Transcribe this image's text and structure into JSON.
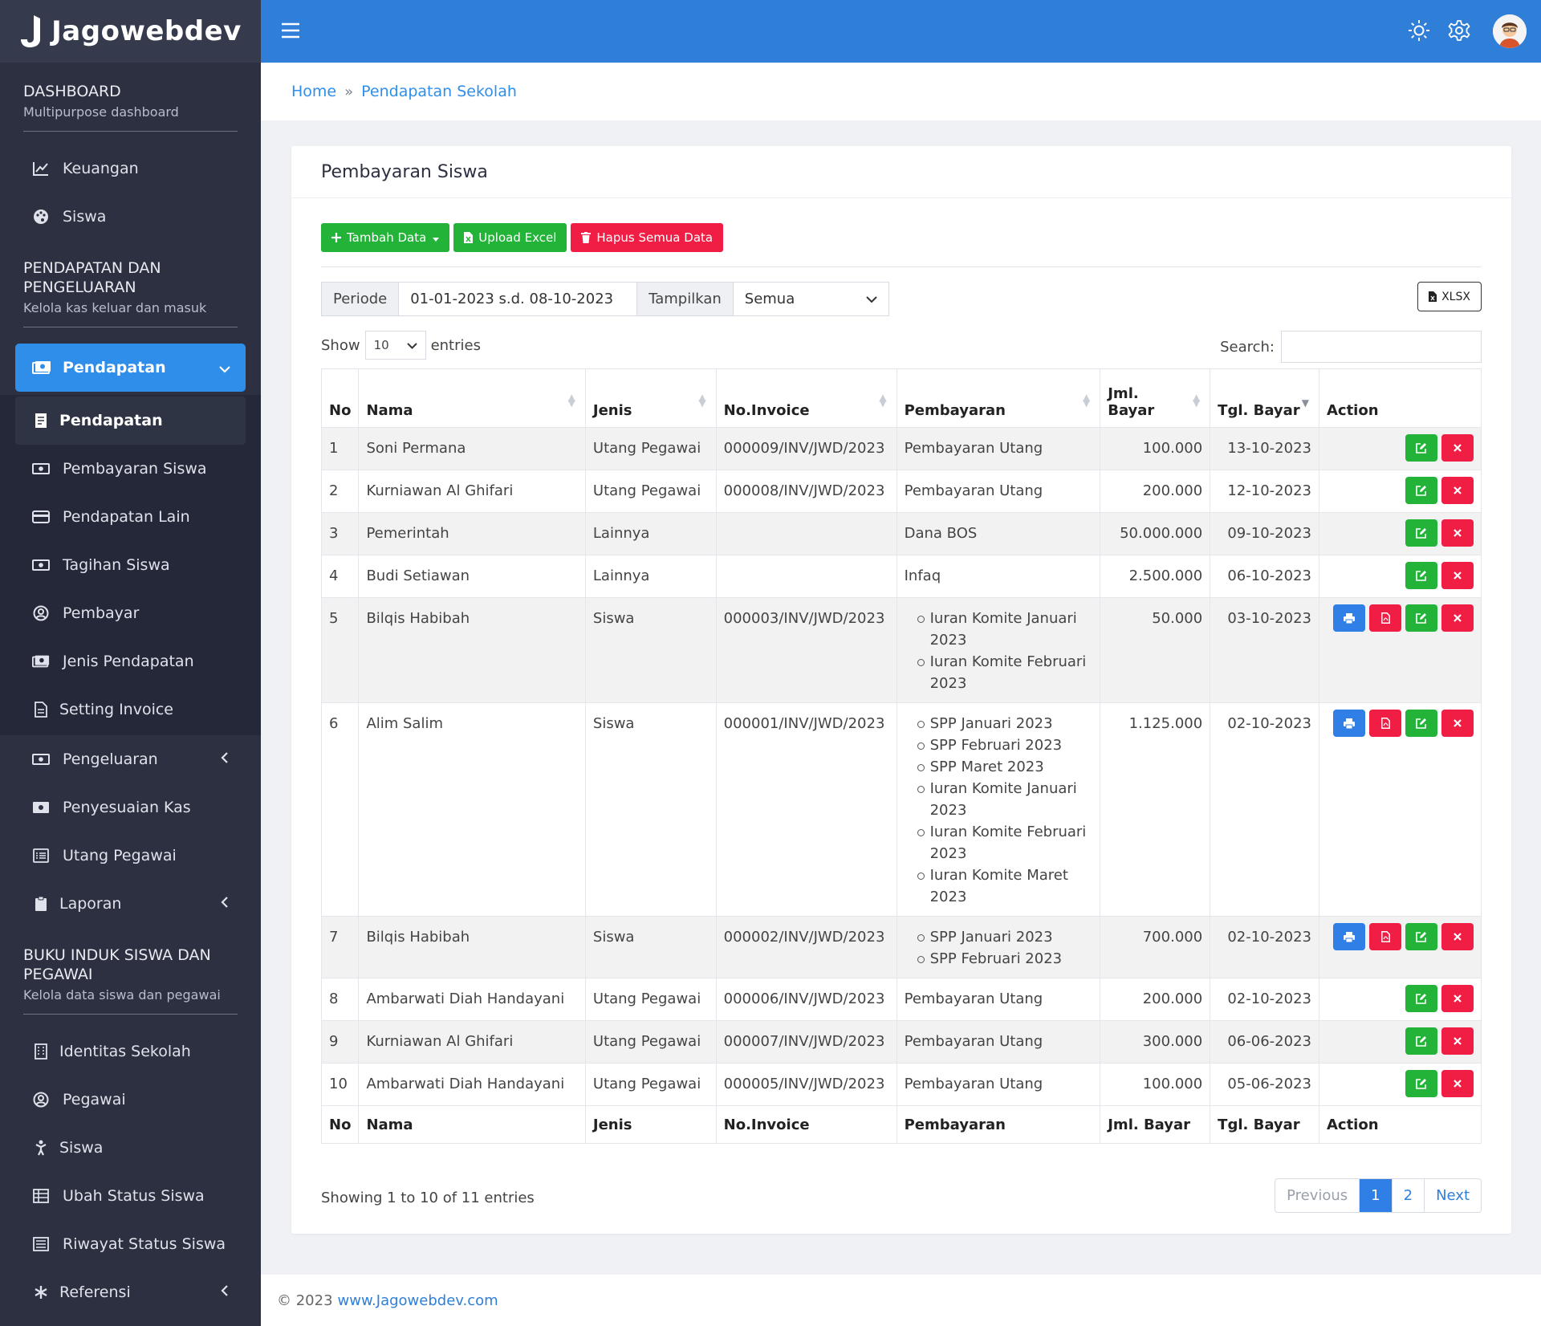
{
  "brand": {
    "name": "Jagowebdev"
  },
  "sidebar": {
    "sections": [
      {
        "title": "DASHBOARD",
        "subtitle": "Multipurpose dashboard"
      },
      {
        "title": "PENDAPATAN DAN PENGELUARAN",
        "subtitle": "Kelola kas keluar dan masuk"
      },
      {
        "title": "BUKU INDUK SISWA DAN PEGAWAI",
        "subtitle": "Kelola data siswa dan pegawai"
      }
    ],
    "dashboard_items": [
      {
        "label": "Keuangan",
        "icon": "chart-line-icon"
      },
      {
        "label": "Siswa",
        "icon": "palette-icon"
      }
    ],
    "pendapatan_group": {
      "label": "Pendapatan",
      "icon": "money-icon"
    },
    "pendapatan_items": [
      {
        "label": "Pendapatan",
        "icon": "receipt-icon",
        "current": true
      },
      {
        "label": "Pembayaran Siswa",
        "icon": "money-bill-icon"
      },
      {
        "label": "Pendapatan Lain",
        "icon": "credit-card-icon"
      },
      {
        "label": "Tagihan Siswa",
        "icon": "money-bill-icon"
      },
      {
        "label": "Pembayar",
        "icon": "user-circle-icon"
      },
      {
        "label": "Jenis Pendapatan",
        "icon": "money-icon"
      },
      {
        "label": "Setting Invoice",
        "icon": "file-icon"
      }
    ],
    "other_items": [
      {
        "label": "Pengeluaran",
        "icon": "money-bill-icon",
        "expandable": true
      },
      {
        "label": "Penyesuaian Kas",
        "icon": "money-icon"
      },
      {
        "label": "Utang Pegawai",
        "icon": "list-icon"
      },
      {
        "label": "Laporan",
        "icon": "clipboard-icon",
        "expandable": true
      }
    ],
    "buku_items": [
      {
        "label": "Identitas Sekolah",
        "icon": "building-icon"
      },
      {
        "label": "Pegawai",
        "icon": "user-circle-icon"
      },
      {
        "label": "Siswa",
        "icon": "child-icon"
      },
      {
        "label": "Ubah Status Siswa",
        "icon": "table-icon"
      },
      {
        "label": "Riwayat Status Siswa",
        "icon": "history-table-icon"
      },
      {
        "label": "Referensi",
        "icon": "asterisk-icon",
        "expandable": true
      }
    ]
  },
  "breadcrumb": {
    "home": "Home",
    "current": "Pendapatan Sekolah"
  },
  "card": {
    "title": "Pembayaran Siswa"
  },
  "toolbar": {
    "add_label": "Tambah Data",
    "upload_label": "Upload Excel",
    "delete_all_label": "Hapus Semua Data",
    "xlsx_label": "XLSX"
  },
  "filter": {
    "periode_label": "Periode",
    "periode_value": "01-01-2023 s.d. 08-10-2023",
    "tampilkan_label": "Tampilkan",
    "tampilkan_value": "Semua"
  },
  "length": {
    "show_label": "Show",
    "value": "10",
    "entries_label": "entries"
  },
  "search": {
    "label": "Search:"
  },
  "table": {
    "headers": {
      "no": "No",
      "nama": "Nama",
      "jenis": "Jenis",
      "invoice": "No.Invoice",
      "pembayaran": "Pembayaran",
      "jml_top": "Jml.",
      "jml_bottom": "Bayar",
      "jml_full": "Jml. Bayar",
      "tgl": "Tgl. Bayar",
      "action": "Action"
    },
    "rows": [
      {
        "no": "1",
        "nama": "Soni Permana",
        "jenis": "Utang Pegawai",
        "invoice": "000009/INV/JWD/2023",
        "pembayaran": [
          "Pembayaran Utang"
        ],
        "list": false,
        "jml": "100.000",
        "tgl": "13-10-2023",
        "print": false
      },
      {
        "no": "2",
        "nama": "Kurniawan Al Ghifari",
        "jenis": "Utang Pegawai",
        "invoice": "000008/INV/JWD/2023",
        "pembayaran": [
          "Pembayaran Utang"
        ],
        "list": false,
        "jml": "200.000",
        "tgl": "12-10-2023",
        "print": false
      },
      {
        "no": "3",
        "nama": "Pemerintah",
        "jenis": "Lainnya",
        "invoice": "",
        "pembayaran": [
          "Dana BOS"
        ],
        "list": false,
        "jml": "50.000.000",
        "tgl": "09-10-2023",
        "print": false
      },
      {
        "no": "4",
        "nama": "Budi Setiawan",
        "jenis": "Lainnya",
        "invoice": "",
        "pembayaran": [
          "Infaq"
        ],
        "list": false,
        "jml": "2.500.000",
        "tgl": "06-10-2023",
        "print": false
      },
      {
        "no": "5",
        "nama": "Bilqis Habibah",
        "jenis": "Siswa",
        "invoice": "000003/INV/JWD/2023",
        "pembayaran": [
          "Iuran Komite Januari 2023",
          "Iuran Komite Februari 2023"
        ],
        "list": true,
        "jml": "50.000",
        "tgl": "03-10-2023",
        "print": true
      },
      {
        "no": "6",
        "nama": "Alim Salim",
        "jenis": "Siswa",
        "invoice": "000001/INV/JWD/2023",
        "pembayaran": [
          "SPP Januari 2023",
          "SPP Februari 2023",
          "SPP Maret 2023",
          "Iuran Komite Januari 2023",
          "Iuran Komite Februari 2023",
          "Iuran Komite Maret 2023"
        ],
        "list": true,
        "jml": "1.125.000",
        "tgl": "02-10-2023",
        "print": true
      },
      {
        "no": "7",
        "nama": "Bilqis Habibah",
        "jenis": "Siswa",
        "invoice": "000002/INV/JWD/2023",
        "pembayaran": [
          "SPP Januari 2023",
          "SPP Februari 2023"
        ],
        "list": true,
        "jml": "700.000",
        "tgl": "02-10-2023",
        "print": true
      },
      {
        "no": "8",
        "nama": "Ambarwati Diah Handayani",
        "jenis": "Utang Pegawai",
        "invoice": "000006/INV/JWD/2023",
        "pembayaran": [
          "Pembayaran Utang"
        ],
        "list": false,
        "jml": "200.000",
        "tgl": "02-10-2023",
        "print": false
      },
      {
        "no": "9",
        "nama": "Kurniawan Al Ghifari",
        "jenis": "Utang Pegawai",
        "invoice": "000007/INV/JWD/2023",
        "pembayaran": [
          "Pembayaran Utang"
        ],
        "list": false,
        "jml": "300.000",
        "tgl": "06-06-2023",
        "print": false
      },
      {
        "no": "10",
        "nama": "Ambarwati Diah Handayani",
        "jenis": "Utang Pegawai",
        "invoice": "000005/INV/JWD/2023",
        "pembayaran": [
          "Pembayaran Utang"
        ],
        "list": false,
        "jml": "100.000",
        "tgl": "05-06-2023",
        "print": false
      }
    ]
  },
  "pagination": {
    "info": "Showing 1 to 10 of 11 entries",
    "previous": "Previous",
    "pages": [
      "1",
      "2"
    ],
    "active_page": "1",
    "next": "Next"
  },
  "footer": {
    "copyright": "© 2023",
    "link": "www.Jagowebdev.com"
  },
  "colors": {
    "topbar": "#2f7fd8",
    "sidebar": "#2c3040",
    "active": "#2f8eea",
    "green": "#22b338",
    "red": "#f01d45",
    "blue": "#2f7fe6"
  }
}
